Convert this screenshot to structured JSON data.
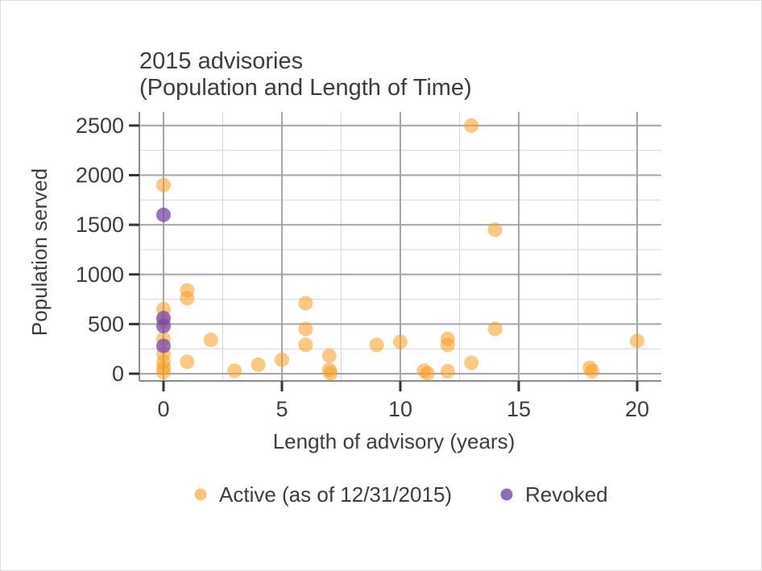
{
  "chart_data": {
    "type": "scatter",
    "title": "2015 advisories (Population and Length of Time)",
    "title_lines": [
      "2015 advisories",
      "(Population and Length of Time)"
    ],
    "xlabel": "Length of advisory (years)",
    "ylabel": "Population served",
    "xlim": [
      -1.02,
      21.02
    ],
    "ylim": [
      -73,
      2637
    ],
    "x_ticks": [
      0,
      5,
      10,
      15,
      20
    ],
    "y_ticks": [
      0,
      500,
      1000,
      1500,
      2000,
      2500
    ],
    "x_minor_gridlines": [
      2.5,
      7.5,
      12.5,
      17.5
    ],
    "y_minor_gridlines": [
      250,
      750,
      1250,
      1750,
      2250
    ],
    "grid": "on",
    "legend_position": "bottom",
    "colors": {
      "text": "#3d3d3d",
      "grid_major": "#a6a6a6",
      "grid_minor": "#d9d9d9",
      "axis": "#8c8c8c",
      "tick": "#333333",
      "active": "#F59C1F",
      "revoked": "#7448A8"
    },
    "series": [
      {
        "name": "Active (as of 12/31/2015)",
        "color": "#F59C1F",
        "opacity": 0.55,
        "points": [
          [
            0,
            1900
          ],
          [
            0,
            650
          ],
          [
            0,
            520
          ],
          [
            0,
            350
          ],
          [
            0,
            200
          ],
          [
            0,
            120
          ],
          [
            0,
            60
          ],
          [
            0,
            15
          ],
          [
            1,
            840
          ],
          [
            1,
            760
          ],
          [
            1,
            120
          ],
          [
            2,
            340
          ],
          [
            3,
            30
          ],
          [
            4,
            90
          ],
          [
            5,
            140
          ],
          [
            6,
            710
          ],
          [
            6,
            450
          ],
          [
            6,
            290
          ],
          [
            7,
            180
          ],
          [
            7,
            40
          ],
          [
            7.05,
            5
          ],
          [
            9,
            290
          ],
          [
            10,
            320
          ],
          [
            11,
            30
          ],
          [
            11.15,
            5
          ],
          [
            12,
            350
          ],
          [
            12,
            290
          ],
          [
            12,
            25
          ],
          [
            13,
            2500
          ],
          [
            13,
            110
          ],
          [
            14,
            1450
          ],
          [
            14,
            450
          ],
          [
            18,
            60
          ],
          [
            18.1,
            25
          ],
          [
            20,
            330
          ]
        ]
      },
      {
        "name": "Revoked",
        "color": "#7448A8",
        "opacity": 0.75,
        "points": [
          [
            0,
            1600
          ],
          [
            0,
            560
          ],
          [
            0,
            480
          ],
          [
            0,
            280
          ]
        ]
      }
    ]
  }
}
